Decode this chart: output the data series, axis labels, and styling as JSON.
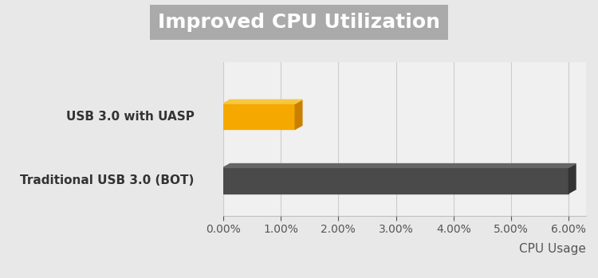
{
  "title": "Improved CPU Utilization",
  "categories": [
    "USB 3.0 with UASP",
    "Traditional USB 3.0 (BOT)"
  ],
  "values": [
    1.25,
    6.0
  ],
  "bar_colors": [
    "#F5A800",
    "#4A4A4A"
  ],
  "bar_top_colors": [
    "#F5C842",
    "#666666"
  ],
  "bar_side_colors": [
    "#C98000",
    "#333333"
  ],
  "xlabel": "CPU Usage",
  "xlim": [
    0,
    6.0
  ],
  "xticks": [
    0.0,
    1.0,
    2.0,
    3.0,
    4.0,
    5.0,
    6.0
  ],
  "xtick_labels": [
    "0.00%",
    "1.00%",
    "2.00%",
    "3.00%",
    "4.00%",
    "5.00%",
    "6.00%"
  ],
  "title_fontsize": 18,
  "label_fontsize": 11,
  "tick_fontsize": 10,
  "bg_color": "#E8E8E8",
  "plot_bg_color": "#F0F0F0",
  "title_bg_color": "#AAAAAA",
  "grid_color": "#CCCCCC",
  "bar_height": 0.4,
  "depth": 0.12
}
